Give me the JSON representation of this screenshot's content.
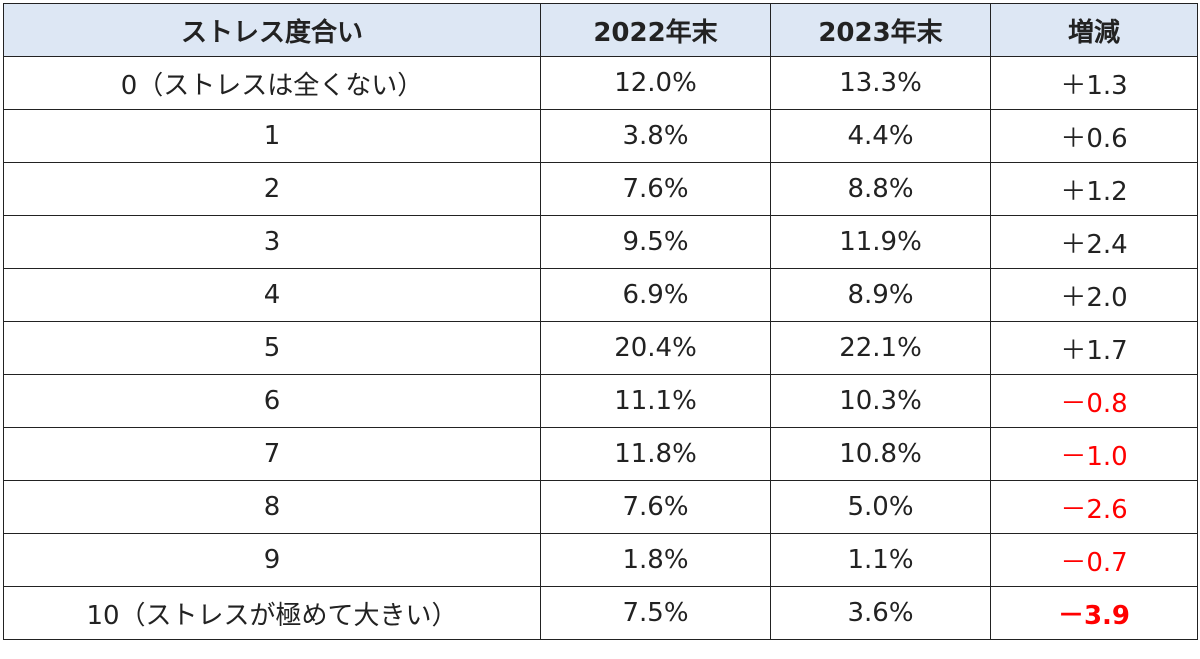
{
  "table": {
    "header": [
      "ストレス度合い",
      "2022年末",
      "2023年末",
      "増減"
    ],
    "rows": [
      [
        "0（ストレスは全くない）",
        "12.0%",
        "13.3%",
        "＋1.3"
      ],
      [
        "1",
        "3.8%",
        "4.4%",
        "＋0.6"
      ],
      [
        "2",
        "7.6%",
        "8.8%",
        "＋1.2"
      ],
      [
        "3",
        "9.5%",
        "11.9%",
        "＋2.4"
      ],
      [
        "4",
        "6.9%",
        "8.9%",
        "＋2.0"
      ],
      [
        "5",
        "20.4%",
        "22.1%",
        "＋1.7"
      ],
      [
        "6",
        "11.1%",
        "10.3%",
        "－0.8"
      ],
      [
        "7",
        "11.8%",
        "10.8%",
        "－1.0"
      ],
      [
        "8",
        "7.6%",
        "5.0%",
        "－2.6"
      ],
      [
        "9",
        "1.8%",
        "1.1%",
        "－0.7"
      ],
      [
        "10（ストレスが極めて大きい）",
        "7.5%",
        "3.6%",
        "－3.9"
      ]
    ]
  }
}
